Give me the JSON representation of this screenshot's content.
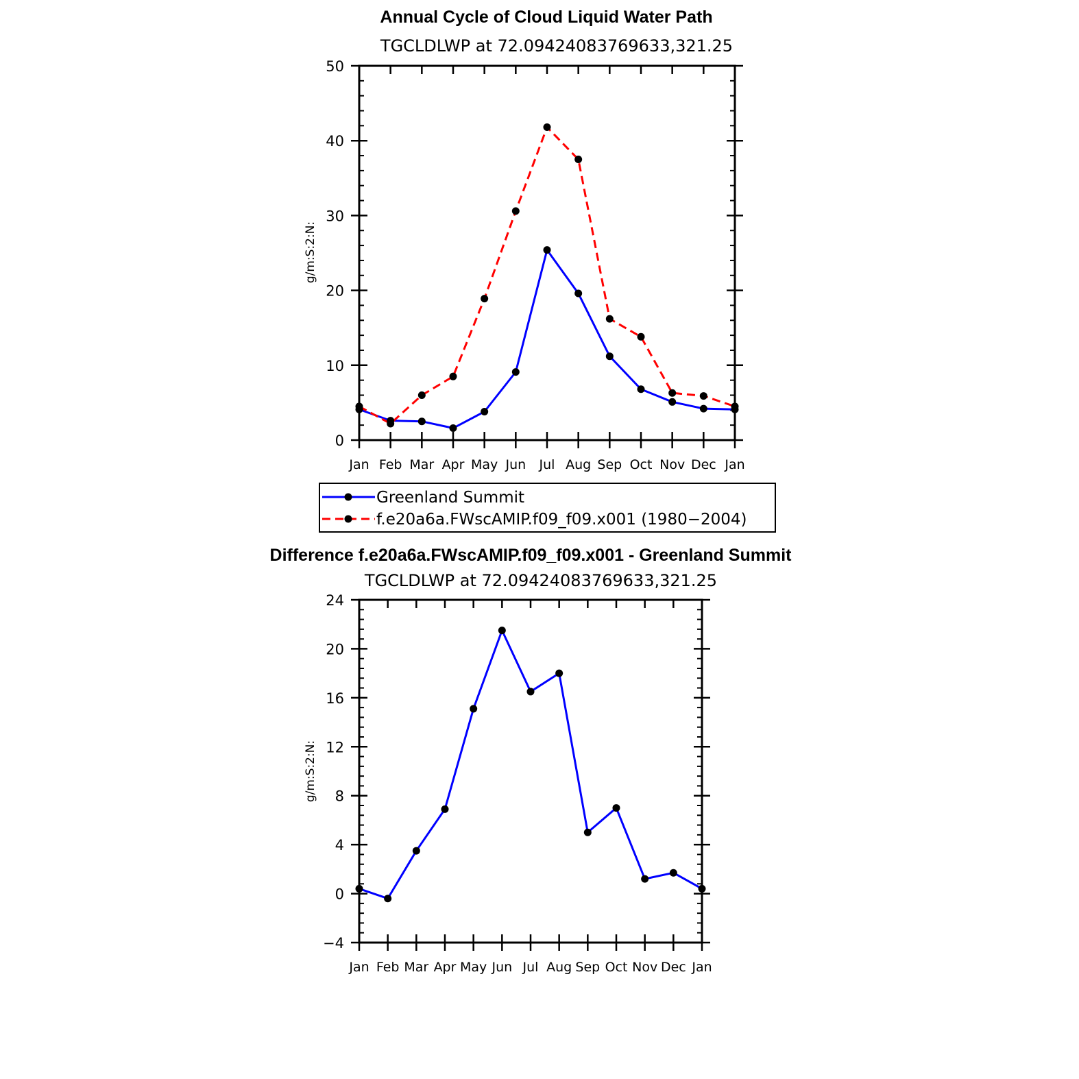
{
  "chart_data": [
    {
      "type": "line",
      "title": "Annual Cycle of Cloud Liquid Water Path",
      "subtitle": "TGCLDLWP  at  72.09424083769633,321.25",
      "xlabel": "",
      "ylabel": "g/m:S:2:N:",
      "categories": [
        "Jan",
        "Feb",
        "Mar",
        "Apr",
        "May",
        "Jun",
        "Jul",
        "Aug",
        "Sep",
        "Oct",
        "Nov",
        "Dec",
        "Jan"
      ],
      "ylim": [
        0,
        50
      ],
      "yticks": [
        "0",
        "10",
        "20",
        "30",
        "40",
        "50"
      ],
      "series": [
        {
          "name": "Greenland Summit",
          "color": "#0000ff",
          "dash": "solid",
          "values": [
            4.1,
            2.6,
            2.5,
            1.6,
            3.8,
            9.1,
            25.4,
            19.6,
            11.2,
            6.8,
            5.1,
            4.2,
            4.1
          ]
        },
        {
          "name": "f.e20a6a.FWscAMIP.f09_f09.x001 (1980-2004)",
          "color": "#ff0000",
          "dash": "dashed",
          "values": [
            4.5,
            2.2,
            6.0,
            8.5,
            18.9,
            30.6,
            41.8,
            37.5,
            16.2,
            13.8,
            6.3,
            5.9,
            4.5
          ]
        }
      ]
    },
    {
      "type": "line",
      "title": "Difference f.e20a6a.FWscAMIP.f09_f09.x001 - Greenland Summit",
      "subtitle": "TGCLDLWP  at  72.09424083769633,321.25",
      "xlabel": "",
      "ylabel": "g/m:S:2:N:",
      "categories": [
        "Jan",
        "Feb",
        "Mar",
        "Apr",
        "May",
        "Jun",
        "Jul",
        "Aug",
        "Sep",
        "Oct",
        "Nov",
        "Dec",
        "Jan"
      ],
      "ylim": [
        -4,
        24
      ],
      "yticks": [
        "-4",
        "0",
        "4",
        "8",
        "12",
        "16",
        "20",
        "24"
      ],
      "series": [
        {
          "name": "Difference",
          "color": "#0000ff",
          "dash": "solid",
          "values": [
            0.4,
            -0.4,
            3.5,
            6.9,
            15.1,
            21.5,
            16.5,
            18.0,
            5.0,
            7.0,
            1.2,
            1.7,
            0.4
          ]
        }
      ]
    }
  ],
  "legend": {
    "entries": [
      "Greenland Summit",
      "f.e20a6a.FWscAMIP.f09_f09.x001 (1980−2004)"
    ]
  },
  "colors": {
    "observed": "#0000ff",
    "model": "#ff0000",
    "marker": "#000000"
  }
}
